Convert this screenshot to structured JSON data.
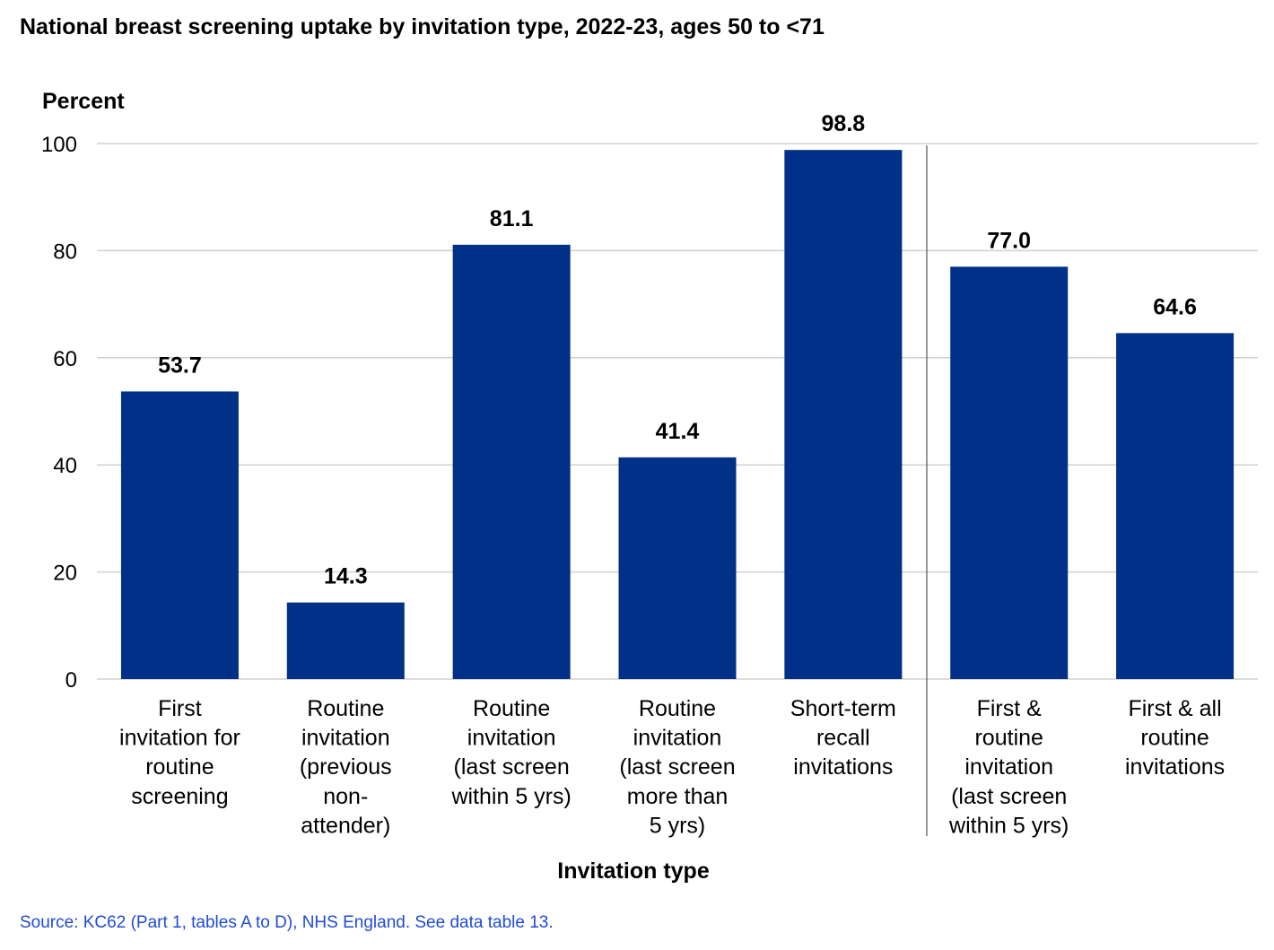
{
  "chart_data": {
    "type": "bar",
    "title": "National breast screening uptake by invitation type, 2022-23, ages 50 to <71",
    "ylabel": "Percent",
    "xlabel": "Invitation type",
    "ylim": [
      0,
      100
    ],
    "yticks": [
      "0",
      "20",
      "40",
      "60",
      "80",
      "100"
    ],
    "grid": true,
    "bar_color": "#003087",
    "categories": [
      [
        "First",
        "invitation for",
        "routine",
        "screening"
      ],
      [
        "Routine",
        "invitation",
        "(previous",
        "non-",
        "attender)"
      ],
      [
        "Routine",
        "invitation",
        "(last screen",
        "within 5 yrs)"
      ],
      [
        "Routine",
        "invitation",
        "(last screen",
        "more than",
        "5 yrs)"
      ],
      [
        "Short-term",
        "recall",
        "invitations"
      ],
      [
        "First &",
        "routine",
        "invitation",
        "(last screen",
        "within 5 yrs)"
      ],
      [
        "First & all",
        "routine",
        "invitations"
      ]
    ],
    "values": [
      53.7,
      14.3,
      81.1,
      41.4,
      98.8,
      77.0,
      64.6
    ],
    "value_labels": [
      "53.7",
      "14.3",
      "81.1",
      "41.4",
      "98.8",
      "77.0",
      "64.6"
    ]
  },
  "source": "Source: KC62 (Part 1, tables A to D), NHS England. See data table 13."
}
